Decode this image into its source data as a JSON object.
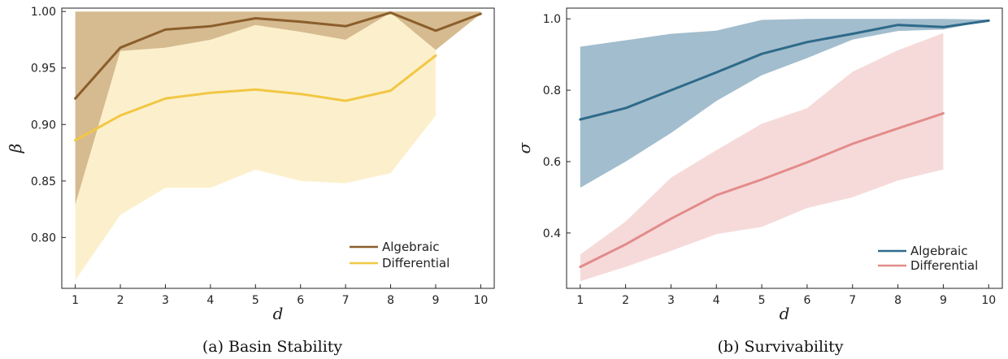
{
  "chart_data": [
    {
      "type": "line",
      "caption": "(a) Basin Stability",
      "xlabel": "d",
      "ylabel": "β",
      "xlim": [
        0.7,
        10.3
      ],
      "ylim": [
        0.755,
        1.003
      ],
      "xticks": [
        1,
        2,
        3,
        4,
        5,
        6,
        7,
        8,
        9,
        10
      ],
      "yticks": [
        0.8,
        0.85,
        0.9,
        0.95,
        1.0
      ],
      "ytick_labels": [
        "0.80",
        "0.85",
        "0.90",
        "0.95",
        "1.00"
      ],
      "legend_position": "bottom-right",
      "grid": false,
      "series": [
        {
          "name": "Algebraic",
          "color": "#8b5e2b",
          "band_color": "#b88a3f",
          "x": [
            1,
            2,
            3,
            4,
            5,
            6,
            7,
            8,
            9,
            10
          ],
          "values": [
            0.923,
            0.968,
            0.984,
            0.987,
            0.994,
            0.991,
            0.987,
            0.999,
            0.983,
            0.998
          ],
          "lower": [
            0.829,
            0.965,
            0.968,
            0.975,
            0.988,
            0.982,
            0.975,
            0.999,
            0.966,
            0.998
          ],
          "upper": [
            1.0,
            1.0,
            1.0,
            1.0,
            1.0,
            1.0,
            1.0,
            1.0,
            1.0,
            1.0
          ]
        },
        {
          "name": "Differential",
          "color": "#f2c744",
          "band_color": "#f8d878",
          "x": [
            1,
            2,
            3,
            4,
            5,
            6,
            7,
            8,
            9
          ],
          "values": [
            0.886,
            0.908,
            0.923,
            0.928,
            0.931,
            0.927,
            0.921,
            0.93,
            0.961
          ],
          "lower": [
            0.762,
            0.82,
            0.844,
            0.844,
            0.86,
            0.85,
            0.848,
            0.857,
            0.908
          ],
          "upper": [
            0.829,
            0.965,
            0.968,
            0.975,
            0.988,
            0.982,
            0.975,
            0.999,
            0.966
          ]
        }
      ]
    },
    {
      "type": "line",
      "caption": "(b) Survivability",
      "xlabel": "d",
      "ylabel": "σ",
      "xlim": [
        0.7,
        10.3
      ],
      "ylim": [
        0.245,
        1.03
      ],
      "xticks": [
        1,
        2,
        3,
        4,
        5,
        6,
        7,
        8,
        9,
        10
      ],
      "yticks": [
        0.4,
        0.6,
        0.8,
        1.0
      ],
      "ytick_labels": [
        "0.4",
        "0.6",
        "0.8",
        "1.0"
      ],
      "legend_position": "bottom-right",
      "grid": false,
      "series": [
        {
          "name": "Algebraic",
          "color": "#2e6a8a",
          "band_color": "#5f8ea8",
          "x": [
            1,
            2,
            3,
            4,
            5,
            6,
            7,
            8,
            9,
            10
          ],
          "values": [
            0.718,
            0.75,
            0.8,
            0.85,
            0.902,
            0.935,
            0.958,
            0.983,
            0.977,
            0.995
          ],
          "lower": [
            0.527,
            0.6,
            0.68,
            0.77,
            0.842,
            0.89,
            0.942,
            0.966,
            0.97,
            0.995
          ],
          "upper": [
            0.922,
            0.94,
            0.958,
            0.967,
            0.997,
            1.0,
            1.0,
            1.0,
            1.0,
            0.998
          ]
        },
        {
          "name": "Differential",
          "color": "#e38c8a",
          "band_color": "#e79e9e",
          "x": [
            1,
            2,
            3,
            4,
            5,
            6,
            7,
            8,
            9
          ],
          "values": [
            0.305,
            0.368,
            0.44,
            0.506,
            0.55,
            0.598,
            0.65,
            0.693,
            0.735
          ],
          "lower": [
            0.265,
            0.305,
            0.35,
            0.397,
            0.417,
            0.47,
            0.5,
            0.547,
            0.578
          ],
          "upper": [
            0.34,
            0.432,
            0.555,
            0.632,
            0.706,
            0.75,
            0.852,
            0.912,
            0.96
          ]
        }
      ]
    }
  ]
}
